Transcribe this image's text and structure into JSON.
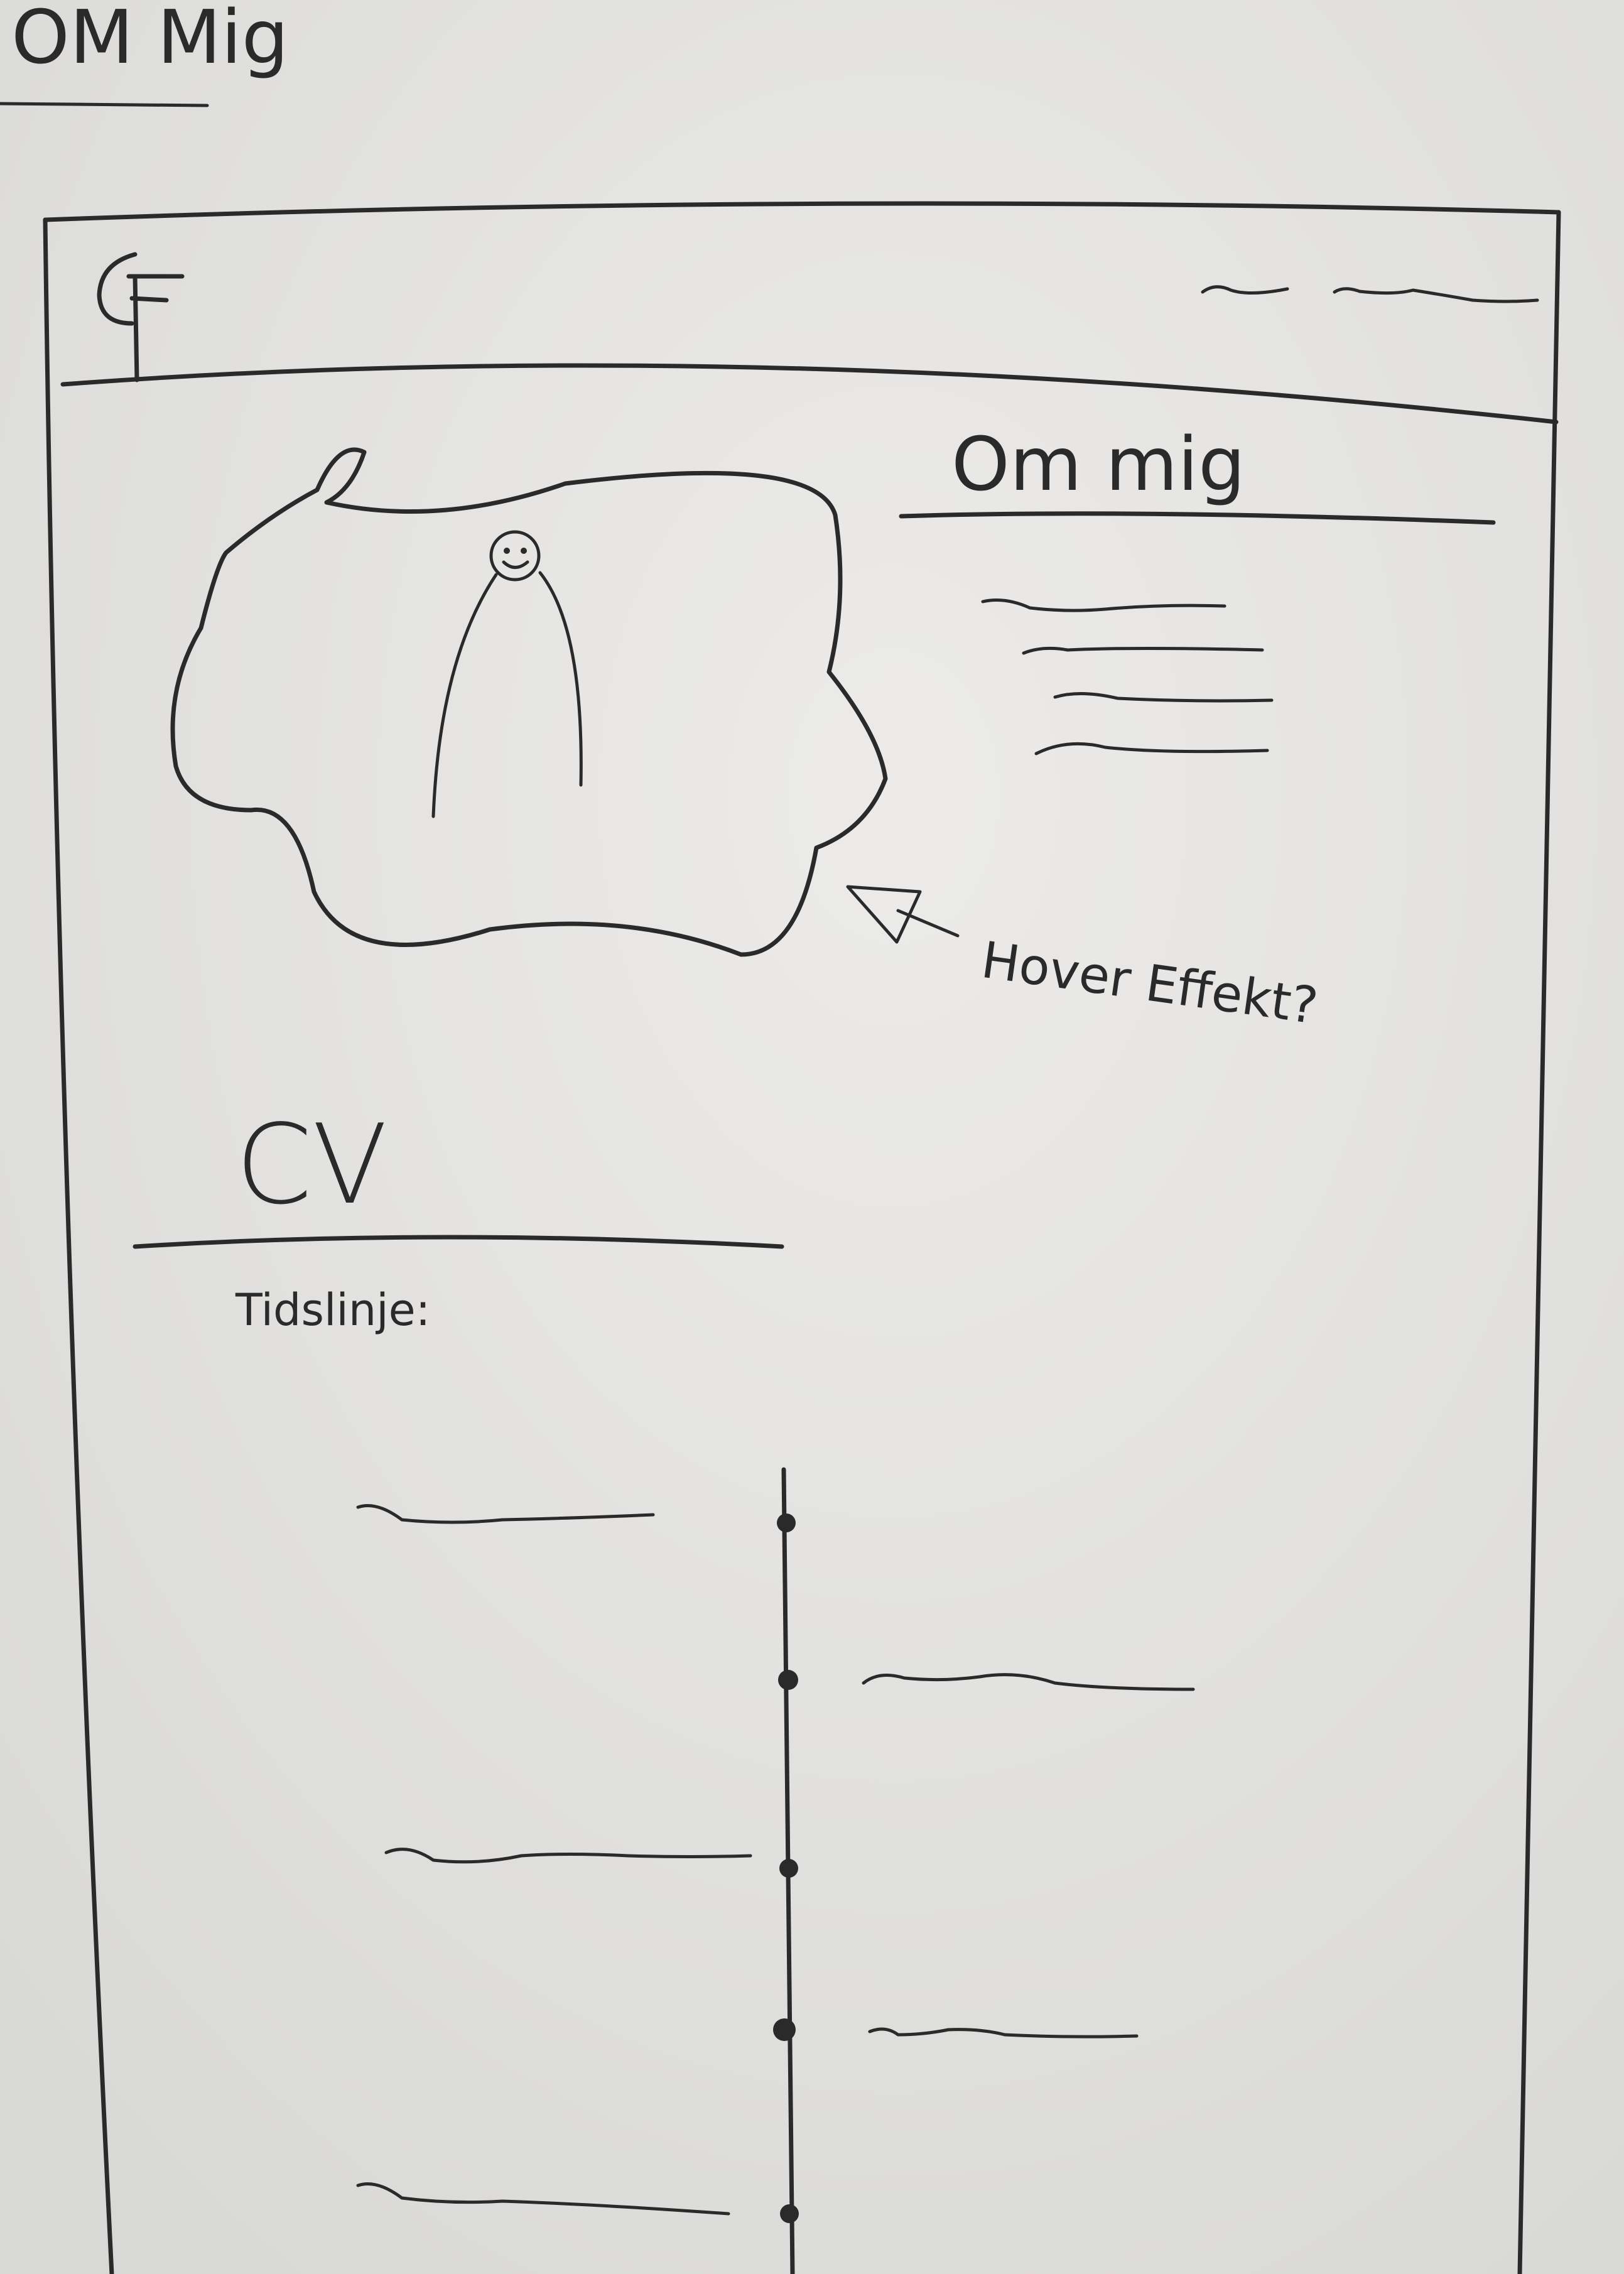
{
  "page_title": "OM Mig",
  "header": {
    "logo_text": "CF"
  },
  "about": {
    "heading": "Om mig"
  },
  "annotation": {
    "hover_note": "Hover Effekt?"
  },
  "cv": {
    "heading": "CV",
    "timeline_label": "Tidslinje:"
  },
  "colors": {
    "paper": "#e7e7e5",
    "ink": "#2a2a2a"
  }
}
